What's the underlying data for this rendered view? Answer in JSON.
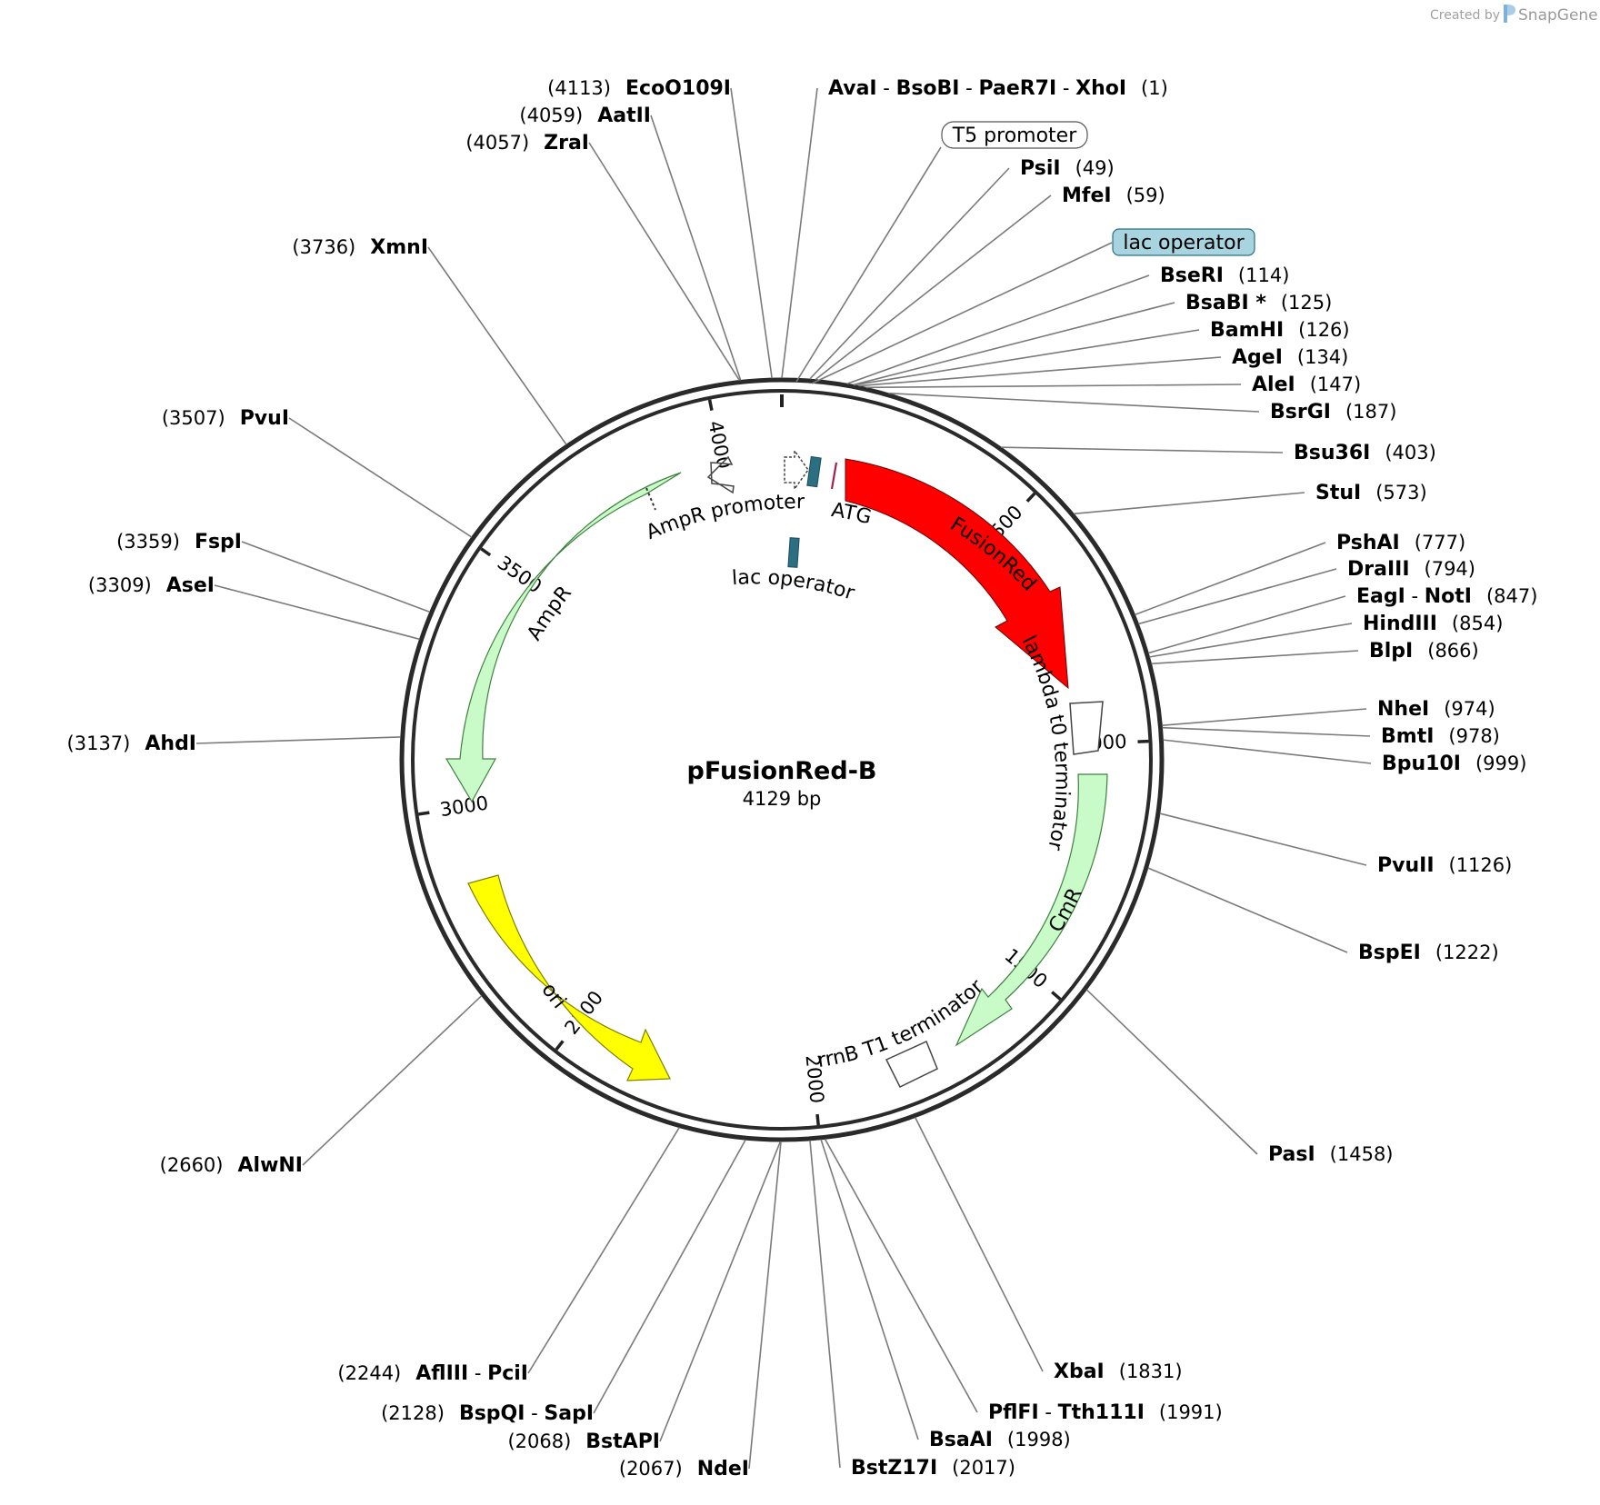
{
  "credit": {
    "prefix": "Created by",
    "brand": "SnapGene"
  },
  "plasmid": {
    "name": "pFusionRed-B",
    "size_label": "4129 bp",
    "length": 4129
  },
  "ticks": [
    {
      "pos": 500,
      "label": "500"
    },
    {
      "pos": 1000,
      "label": "1000"
    },
    {
      "pos": 1500,
      "label": "1500"
    },
    {
      "pos": 2000,
      "label": "2000"
    },
    {
      "pos": 2500,
      "label": "2500"
    },
    {
      "pos": 3000,
      "label": "3000"
    },
    {
      "pos": 3500,
      "label": "3500"
    },
    {
      "pos": 4000,
      "label": "4000"
    }
  ],
  "features": [
    {
      "name": "FusionRed",
      "color": "#ff0000",
      "text_color": "#ffffff"
    },
    {
      "name": "AmpR",
      "color": "#c9fbc9",
      "text_color": "#000000"
    },
    {
      "name": "CmR",
      "color": "#c9fbc9",
      "text_color": "#000000"
    },
    {
      "name": "ori",
      "color": "#ffff00",
      "text_color": "#000000"
    },
    {
      "name": "AmpR promoter",
      "color": "#ffffff",
      "text_color": "#000000"
    },
    {
      "name": "lac operator",
      "color": "#2a6f82",
      "text_color": "#000000"
    },
    {
      "name": "ATG",
      "color": "#a0204a",
      "text_color": "#000000"
    },
    {
      "name": "lambda t0 terminator",
      "color": "#ffffff",
      "text_color": "#000000"
    },
    {
      "name": "rrnB T1 terminator",
      "color": "#ffffff",
      "text_color": "#000000"
    }
  ],
  "callouts": [
    {
      "name": "T5 promoter",
      "fill": "#ffffff"
    },
    {
      "name": "lac operator",
      "fill": "#a8d4e0"
    }
  ],
  "sites": [
    {
      "names": [
        "EcoO109I"
      ],
      "pos": "(4113)"
    },
    {
      "names": [
        "AatII"
      ],
      "pos": "(4059)"
    },
    {
      "names": [
        "ZraI"
      ],
      "pos": "(4057)"
    },
    {
      "names": [
        "XmnI"
      ],
      "pos": "(3736)"
    },
    {
      "names": [
        "PvuI"
      ],
      "pos": "(3507)"
    },
    {
      "names": [
        "FspI"
      ],
      "pos": "(3359)"
    },
    {
      "names": [
        "AseI"
      ],
      "pos": "(3309)"
    },
    {
      "names": [
        "AhdI"
      ],
      "pos": "(3137)"
    },
    {
      "names": [
        "AlwNI"
      ],
      "pos": "(2660)"
    },
    {
      "names": [
        "AflIII",
        "PciI"
      ],
      "pos": "(2244)"
    },
    {
      "names": [
        "BspQI",
        "SapI"
      ],
      "pos": "(2128)"
    },
    {
      "names": [
        "BstAPI"
      ],
      "pos": "(2068)"
    },
    {
      "names": [
        "NdeI"
      ],
      "pos": "(2067)"
    },
    {
      "names": [
        "AvaI",
        "BsoBI",
        "PaeR7I",
        "XhoI"
      ],
      "pos": "(1)"
    },
    {
      "names": [
        "PsiI"
      ],
      "pos": "(49)"
    },
    {
      "names": [
        "MfeI"
      ],
      "pos": "(59)"
    },
    {
      "names": [
        "BseRI"
      ],
      "pos": "(114)"
    },
    {
      "names": [
        "BsaBI *"
      ],
      "pos": "(125)",
      "color": "#8c8c8c"
    },
    {
      "names": [
        "BamHI"
      ],
      "pos": "(126)"
    },
    {
      "names": [
        "AgeI"
      ],
      "pos": "(134)"
    },
    {
      "names": [
        "AleI"
      ],
      "pos": "(147)"
    },
    {
      "names": [
        "BsrGI"
      ],
      "pos": "(187)"
    },
    {
      "names": [
        "Bsu36I"
      ],
      "pos": "(403)"
    },
    {
      "names": [
        "StuI"
      ],
      "pos": "(573)"
    },
    {
      "names": [
        "PshAI"
      ],
      "pos": "(777)"
    },
    {
      "names": [
        "DraIII"
      ],
      "pos": "(794)"
    },
    {
      "names": [
        "EagI",
        "NotI"
      ],
      "pos": "(847)"
    },
    {
      "names": [
        "HindIII"
      ],
      "pos": "(854)"
    },
    {
      "names": [
        "BlpI"
      ],
      "pos": "(866)"
    },
    {
      "names": [
        "NheI"
      ],
      "pos": "(974)"
    },
    {
      "names": [
        "BmtI"
      ],
      "pos": "(978)"
    },
    {
      "names": [
        "Bpu10I"
      ],
      "pos": "(999)"
    },
    {
      "names": [
        "PvuII"
      ],
      "pos": "(1126)"
    },
    {
      "names": [
        "BspEI"
      ],
      "pos": "(1222)"
    },
    {
      "names": [
        "PasI"
      ],
      "pos": "(1458)"
    },
    {
      "names": [
        "XbaI"
      ],
      "pos": "(1831)"
    },
    {
      "names": [
        "PflFI",
        "Tth111I"
      ],
      "pos": "(1991)"
    },
    {
      "names": [
        "BsaAI"
      ],
      "pos": "(1998)"
    },
    {
      "names": [
        "BstZ17I"
      ],
      "pos": "(2017)"
    }
  ]
}
